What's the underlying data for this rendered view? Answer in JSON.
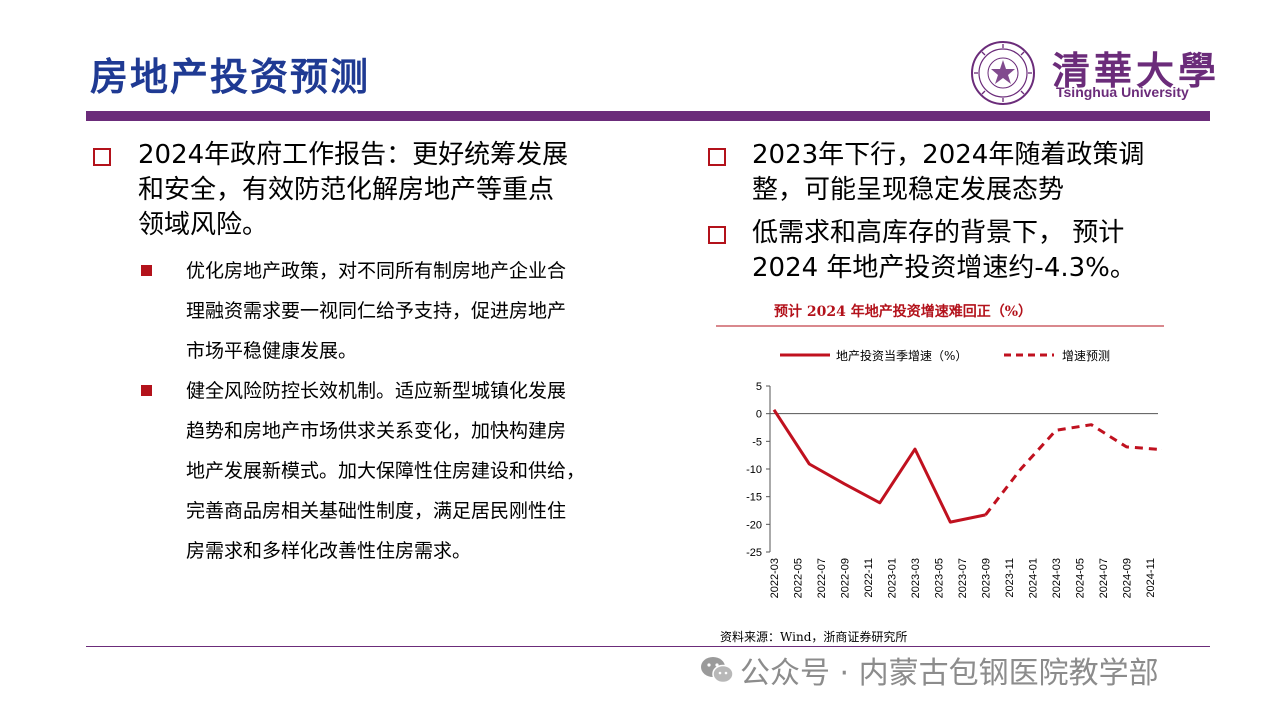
{
  "header": {
    "title": "房地产投资预测",
    "logo_name": "清華大學",
    "logo_en": "Tsinghua University"
  },
  "left": {
    "main_bullet": [
      "2024年政府工作报告：更好统筹发展",
      "和安全，有效防范化解房地产等重点",
      "领域风险。"
    ],
    "sub_bullets": [
      [
        "优化房地产政策，对不同所有制房地产企业合",
        "理融资需求要一视同仁给予支持，促进房地产",
        "市场平稳健康发展。"
      ],
      [
        "健全风险防控长效机制。适应新型城镇化发展",
        "趋势和房地产市场供求关系变化，加快构建房",
        "地产发展新模式。加大保障性住房建设和供给，",
        "完善商品房相关基础性制度，满足居民刚性住",
        "房需求和多样化改善性住房需求。"
      ]
    ]
  },
  "right": {
    "bullets": [
      [
        "2023年下行，2024年随着政策调",
        "整，可能呈现稳定发展态势"
      ],
      [
        "低需求和高库存的背景下， 预计",
        "2024 年地产投资增速约-4.3%。"
      ]
    ]
  },
  "chart_meta": {
    "source": "资料来源：Wind，浙商证券研究所"
  },
  "chart_data": {
    "type": "line",
    "title": "预计 2024 年地产投资增速难回正（%）",
    "xlabel": "",
    "ylabel": "",
    "ylim": [
      -25,
      5
    ],
    "yticks": [
      5,
      0,
      -5,
      -10,
      -15,
      -20,
      -25
    ],
    "x": [
      "2022-03",
      "2022-05",
      "2022-07",
      "2022-09",
      "2022-11",
      "2023-01",
      "2023-03",
      "2023-05",
      "2023-07",
      "2023-09",
      "2023-11",
      "2024-01",
      "2024-03",
      "2024-05",
      "2024-07",
      "2024-09",
      "2024-11"
    ],
    "legend_position": "top",
    "series": [
      {
        "name": "地产投资当季增速（%）",
        "style": "solid",
        "color": "#c0111f",
        "points": [
          [
            "2022-03",
            0.7
          ],
          [
            "2022-06",
            -9.1
          ],
          [
            "2022-09",
            -12.7
          ],
          [
            "2022-12",
            -16.1
          ],
          [
            "2023-03",
            -6.4
          ],
          [
            "2023-06",
            -19.6
          ],
          [
            "2023-09",
            -18.3
          ]
        ]
      },
      {
        "name": "增速预测",
        "style": "dashed",
        "color": "#c0111f",
        "points": [
          [
            "2023-09",
            -18.3
          ],
          [
            "2023-12",
            -10.0
          ],
          [
            "2024-03",
            -3.0
          ],
          [
            "2024-06",
            -2.0
          ],
          [
            "2024-09",
            -6.0
          ],
          [
            "2024-12",
            -6.5
          ]
        ]
      }
    ]
  },
  "watermark": {
    "text": "公众号 · 内蒙古包钢医院教学部"
  },
  "colors": {
    "title": "#1f3a93",
    "accent": "#6b2c7a",
    "bullet": "#b3121b",
    "series": "#c0111f"
  }
}
